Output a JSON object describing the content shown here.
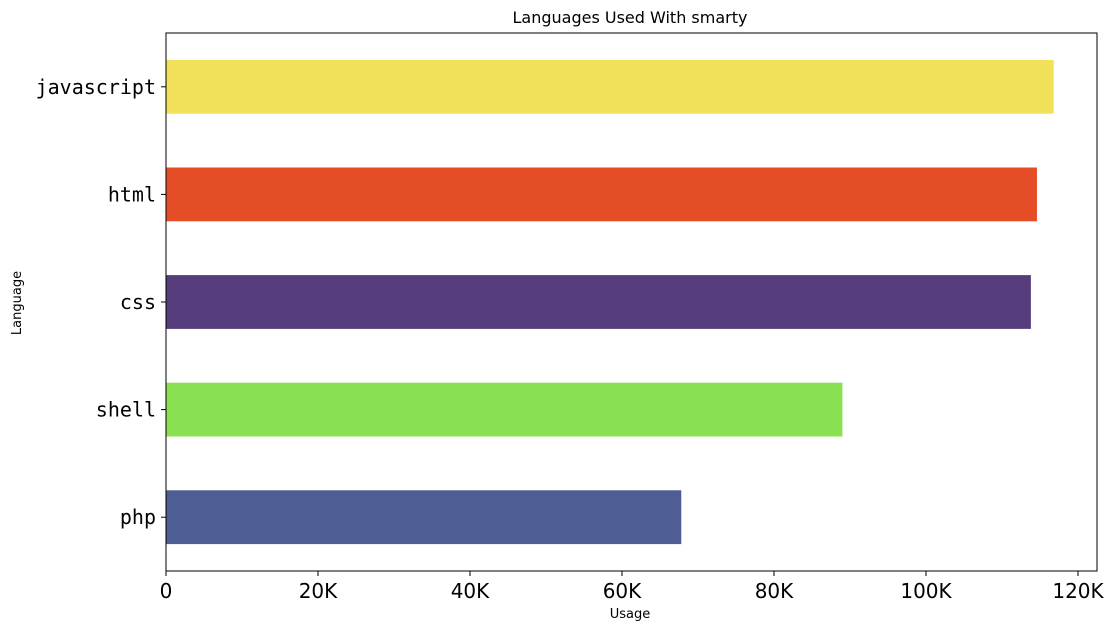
{
  "chart_data": {
    "type": "bar",
    "orientation": "horizontal",
    "title": "Languages Used With smarty",
    "xlabel": "Usage",
    "ylabel": "Language",
    "categories": [
      "javascript",
      "html",
      "css",
      "shell",
      "php"
    ],
    "values": [
      116800,
      114600,
      113800,
      89000,
      67800
    ],
    "colors": [
      "#f0e05a",
      "#e44d26",
      "#563d7c",
      "#89e051",
      "#4f5d95"
    ],
    "xlim": [
      0,
      122500
    ],
    "xticks": [
      0,
      20000,
      40000,
      60000,
      80000,
      100000,
      120000
    ],
    "xtick_labels": [
      "0",
      "20K",
      "40K",
      "60K",
      "80K",
      "100K",
      "120K"
    ],
    "grid": false,
    "legend": "none"
  }
}
